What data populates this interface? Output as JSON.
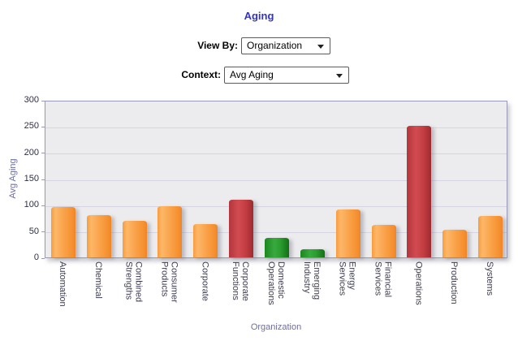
{
  "title": "Aging",
  "controls": {
    "view_by_label": "View By:",
    "view_by_value": "Organization",
    "context_label": "Context:",
    "context_value": "Avg Aging"
  },
  "colors": {
    "title_text": "#3333cc",
    "axis_title_text": "#6e6e9e",
    "plot_background": "#ececee",
    "gridline": "#d5d5e2",
    "plot_border": "#9a9ab8",
    "bar_orange": "#f9a148",
    "bar_red": "#c23c41",
    "bar_green": "#2b9c30"
  },
  "chart_data": {
    "type": "bar",
    "title": "Aging",
    "xlabel": "Organization",
    "ylabel": "Avg Aging",
    "ylim": [
      0,
      300
    ],
    "yticks": [
      0,
      50,
      100,
      150,
      200,
      250,
      300
    ],
    "grid": "horizontal",
    "legend": "none",
    "categories": [
      "Automation",
      "Chemical",
      "Combined Strengths",
      "Consumer Products",
      "Corporate",
      "Corporate Functions",
      "Domestic Operations",
      "Emerging Industry",
      "Energy Services",
      "Financial Services",
      "Operations",
      "Production",
      "Systems"
    ],
    "values": [
      96,
      81,
      69,
      98,
      64,
      110,
      37,
      15,
      92,
      62,
      250,
      52,
      79
    ],
    "bar_colors": [
      "orange",
      "orange",
      "orange",
      "orange",
      "orange",
      "red",
      "green",
      "green",
      "orange",
      "orange",
      "red",
      "orange",
      "orange"
    ]
  }
}
